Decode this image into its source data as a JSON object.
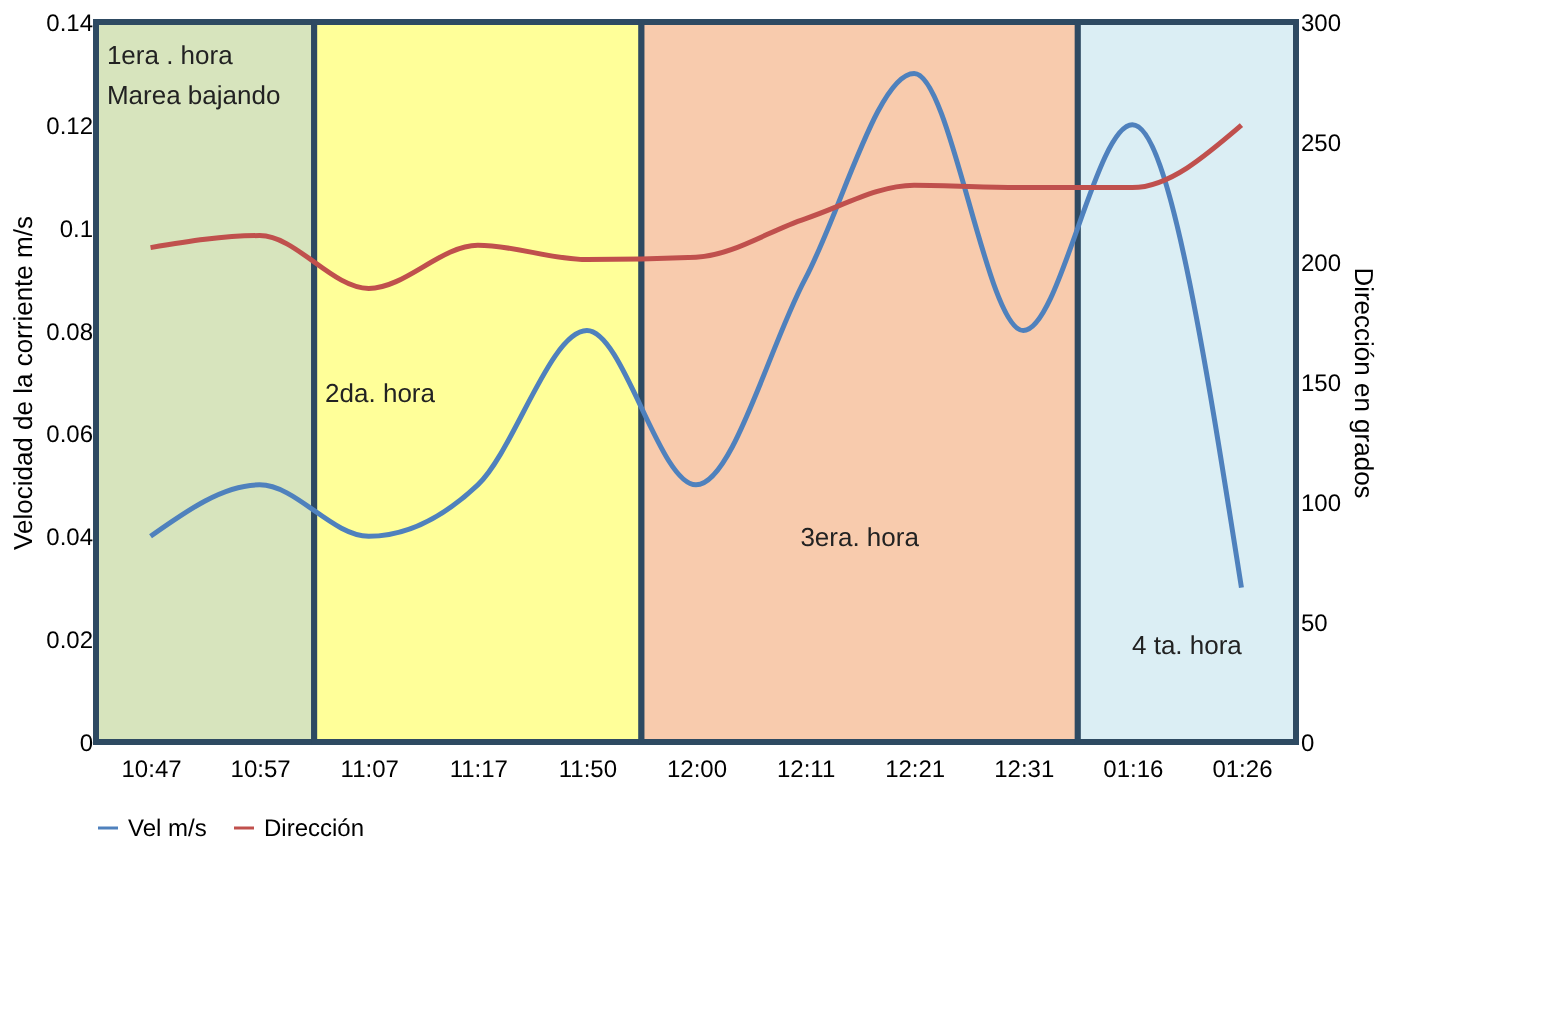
{
  "chart_data": {
    "type": "line",
    "ylabel": "Velocidad  de la corriente m/s",
    "y2label": "Dirección en grados",
    "categories": [
      "10:47",
      "10:57",
      "11:07",
      "11:17",
      "11:50",
      "12:00",
      "12:11",
      "12:21",
      "12:31",
      "01:16",
      "01:26"
    ],
    "series": [
      {
        "name": "Vel m/s",
        "color": "#4f81bd",
        "values": [
          0.04,
          0.05,
          0.04,
          0.05,
          0.08,
          0.05,
          0.09,
          0.13,
          0.08,
          0.12,
          0.03
        ]
      },
      {
        "name": "Dirección",
        "color": "#c0504d",
        "axis": "y2",
        "values": [
          206,
          211,
          189,
          207,
          201,
          202,
          218,
          232,
          231,
          231,
          257
        ]
      }
    ],
    "ylim": [
      0,
      0.14
    ],
    "yticks": [
      0,
      0.02,
      0.04,
      0.06,
      0.08,
      0.1,
      0.12,
      0.14
    ],
    "y2lim": [
      0,
      300
    ],
    "y2ticks": [
      0,
      50,
      100,
      150,
      200,
      250,
      300
    ],
    "bands": [
      {
        "axis": "x",
        "from": "10:47",
        "to": "10:57",
        "label": "1era . hora\nMarea bajando",
        "color": "#d7e4bd"
      },
      {
        "axis": "x",
        "from": "11:07",
        "to": "11:50",
        "label": "2da. hora",
        "color": "#ffff99"
      },
      {
        "axis": "x",
        "from": "12:00",
        "to": "12:31",
        "label": "3era. hora",
        "color": "#f8cbad"
      },
      {
        "axis": "x",
        "from": "01:16",
        "to": "01:26",
        "label": "4 ta. hora",
        "color": "#dbeef4"
      }
    ],
    "legend": "bottom",
    "marker": "none",
    "line_style": "solid"
  }
}
